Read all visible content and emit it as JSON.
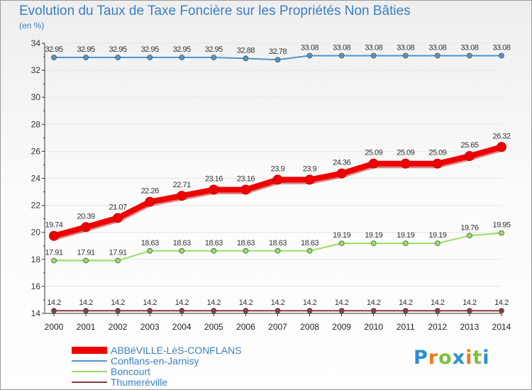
{
  "title": "Evolution du Taux de Taxe Foncière sur les Propriétés Non Bâties",
  "unit": "(en %)",
  "logo": {
    "letters": [
      "P",
      "r",
      "o",
      "x",
      "i",
      "t",
      "i"
    ],
    "colors": [
      "#2a8fd0",
      "#f07a1a",
      "#7cc142",
      "#2a8fd0",
      "#f07a1a",
      "#7cc142",
      "#2a8fd0"
    ]
  },
  "chart_data": {
    "type": "line",
    "title": "Evolution du Taux de Taxe Foncière sur les Propriétés Non Bâties",
    "ylabel": "(en %)",
    "xlabel": "",
    "x": [
      "2000",
      "2001",
      "2002",
      "2003",
      "2004",
      "2005",
      "2006",
      "2007",
      "2008",
      "2009",
      "2010",
      "2011",
      "2012",
      "2013",
      "2014"
    ],
    "ylim": [
      14,
      34
    ],
    "yticks": [
      14,
      16,
      18,
      20,
      22,
      24,
      26,
      28,
      30,
      32,
      34
    ],
    "series": [
      {
        "name": "ABBéVILLE-LèS-CONFLANS",
        "color": "#ee0000",
        "values": [
          19.74,
          20.39,
          21.07,
          22.26,
          22.71,
          23.16,
          23.16,
          23.9,
          23.9,
          24.36,
          25.09,
          25.09,
          25.09,
          25.65,
          26.32
        ],
        "labels": [
          "19.74",
          "20.39",
          "21.07",
          "22.26",
          "22.71",
          "23.16",
          "23.16",
          "23.9",
          "23.9",
          "24.36",
          "25.09",
          "25.09",
          "25.09",
          "25.65",
          "26.32"
        ]
      },
      {
        "name": "Conflans-en-Jarnisy",
        "color": "#4f94cd",
        "values": [
          32.95,
          32.95,
          32.95,
          32.95,
          32.95,
          32.95,
          32.88,
          32.78,
          33.08,
          33.08,
          33.08,
          33.08,
          33.08,
          33.08,
          33.08
        ],
        "labels": [
          "32.95",
          "32.95",
          "32.95",
          "32.95",
          "32.95",
          "32.95",
          "32.88",
          "32.78",
          "33.08",
          "33.08",
          "33.08",
          "33.08",
          "33.08",
          "33.08",
          "33.08"
        ]
      },
      {
        "name": "Boncourt",
        "color": "#99dd66",
        "values": [
          17.91,
          17.91,
          17.91,
          18.63,
          18.63,
          18.63,
          18.63,
          18.63,
          18.63,
          19.19,
          19.19,
          19.19,
          19.19,
          19.76,
          19.95
        ],
        "labels": [
          "17.91",
          "17.91",
          "17.91",
          "18.63",
          "18.63",
          "18.63",
          "18.63",
          "18.63",
          "18.63",
          "19.19",
          "19.19",
          "19.19",
          "19.19",
          "19.76",
          "19.95"
        ]
      },
      {
        "name": "Thumeréville",
        "color": "#8b3a3a",
        "values": [
          14.2,
          14.2,
          14.2,
          14.2,
          14.2,
          14.2,
          14.2,
          14.2,
          14.2,
          14.2,
          14.2,
          14.2,
          14.2,
          14.2,
          14.2
        ],
        "labels": [
          "14.2",
          "14.2",
          "14.2",
          "14.2",
          "14.2",
          "14.2",
          "14.2",
          "14.2",
          "14.2",
          "14.2",
          "14.2",
          "14.2",
          "14.2",
          "14.2",
          "14.2"
        ]
      }
    ]
  }
}
